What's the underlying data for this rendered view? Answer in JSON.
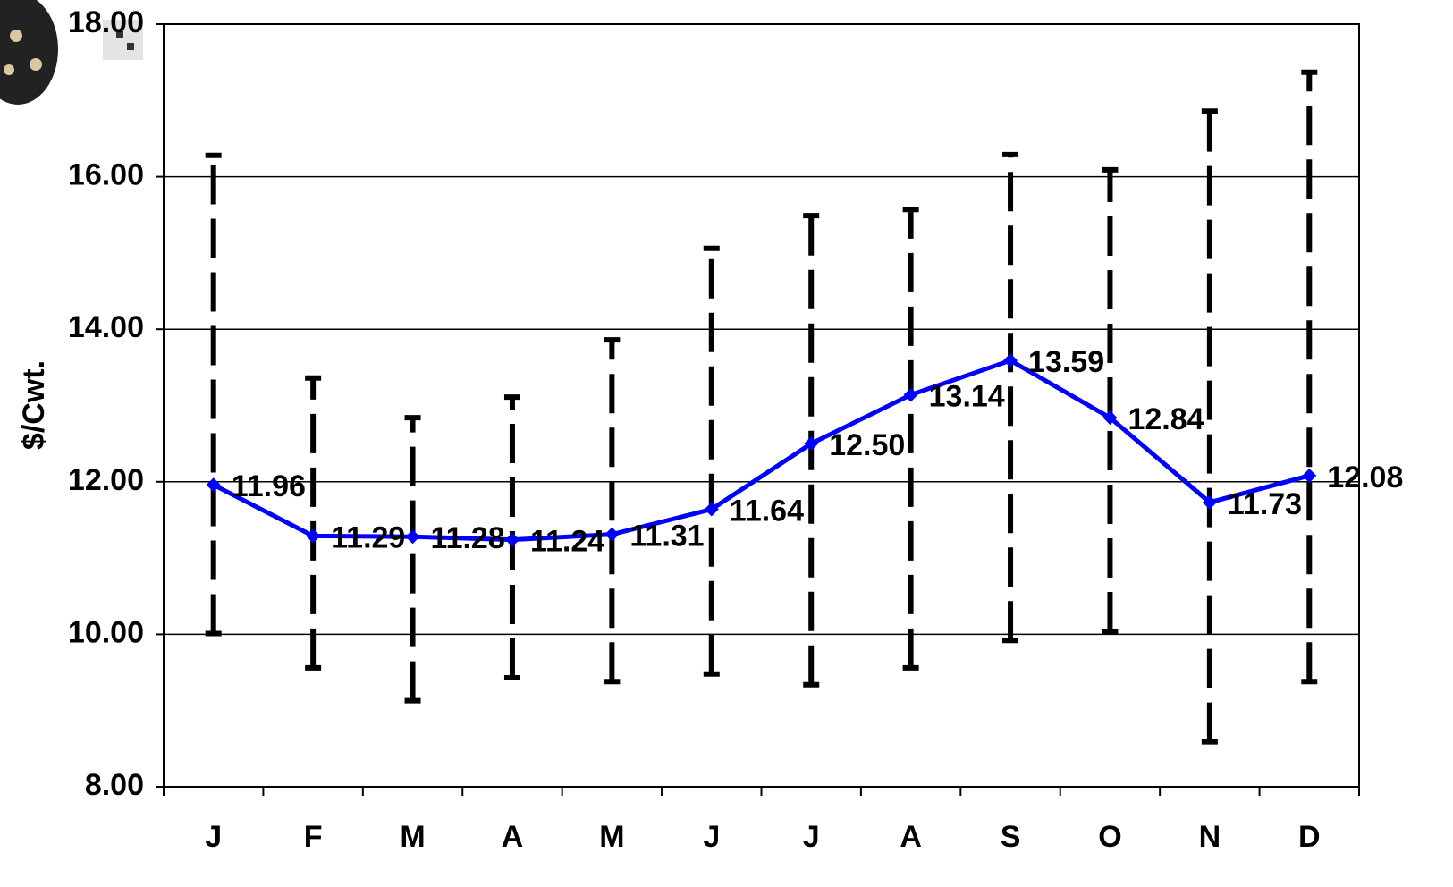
{
  "chart_data": {
    "type": "line",
    "y_label": "$/Cwt.",
    "categories": [
      "J",
      "F",
      "M",
      "A",
      "M",
      "J",
      "J",
      "A",
      "S",
      "O",
      "N",
      "D"
    ],
    "series": [
      {
        "color": "#0000ff",
        "values": [
          11.96,
          11.29,
          11.28,
          11.24,
          11.31,
          11.64,
          12.5,
          13.14,
          13.59,
          12.84,
          11.73,
          12.08
        ],
        "value_labels": [
          "11.96",
          "11.29",
          "11.28",
          "11.24",
          "11.31",
          "11.64",
          "12.50",
          "13.14",
          "13.59",
          "12.84",
          "11.73",
          "12.08"
        ],
        "low": [
          10.01,
          9.56,
          9.13,
          9.43,
          9.38,
          9.48,
          9.34,
          9.56,
          9.92,
          10.04,
          8.59,
          9.38
        ],
        "high": [
          16.28,
          13.36,
          12.84,
          13.11,
          13.86,
          15.06,
          15.49,
          15.57,
          16.29,
          16.09,
          16.86,
          17.37
        ],
        "error_color": "#000000"
      }
    ],
    "ylim": [
      8,
      18
    ],
    "yticks": [
      {
        "value": 8,
        "label": "8.00"
      },
      {
        "value": 10,
        "label": "10.00"
      },
      {
        "value": 12,
        "label": "12.00"
      },
      {
        "value": 14,
        "label": "14.00"
      },
      {
        "value": 16,
        "label": "16.00"
      },
      {
        "value": 18,
        "label": "18.00"
      }
    ],
    "grid": true
  }
}
